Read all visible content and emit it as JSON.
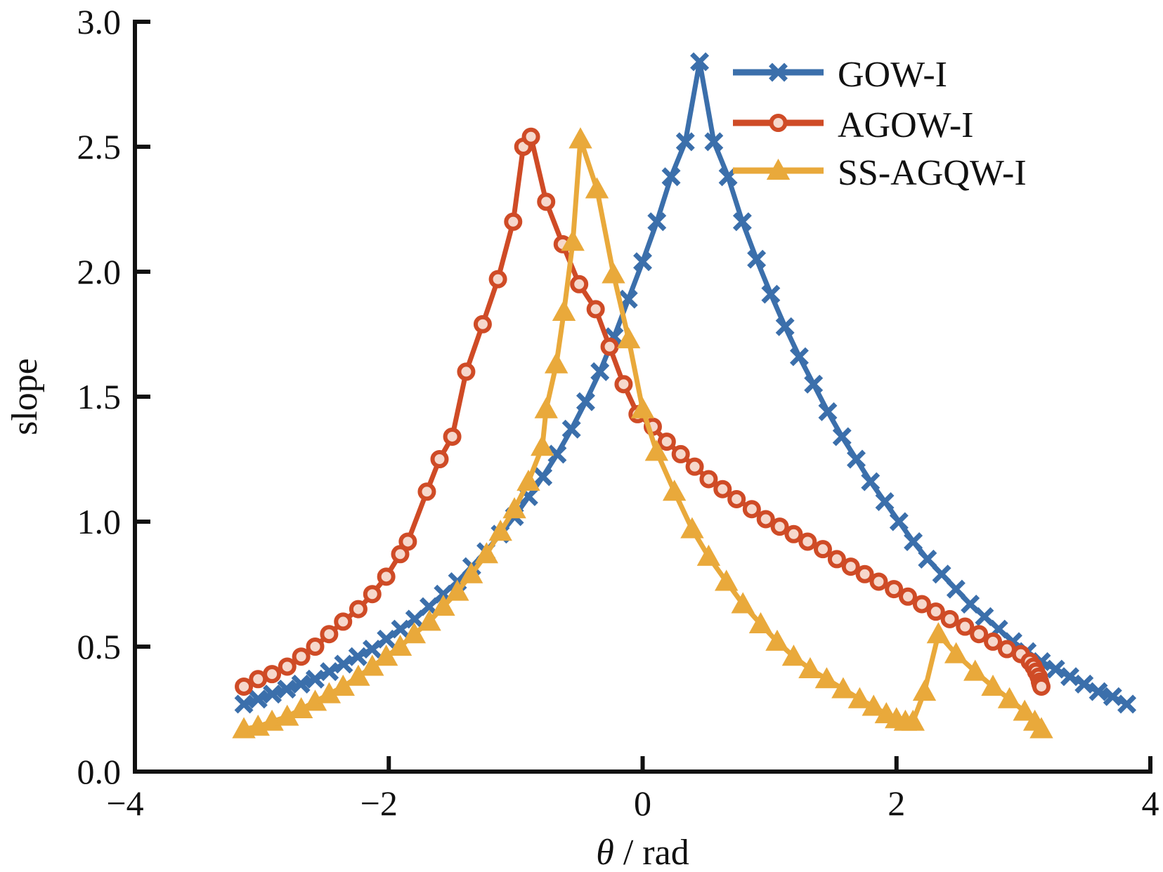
{
  "chart_data": {
    "type": "line",
    "title": "",
    "xlabel_symbol": "θ",
    "xlabel_unit": " / rad",
    "xlabel": "θ / rad",
    "ylabel": "slope",
    "xlim": [
      -4,
      4
    ],
    "ylim": [
      0,
      3.0
    ],
    "xticks": [
      -4,
      -2,
      0,
      2,
      4
    ],
    "xtick_labels": [
      "−4",
      "−2",
      "0",
      "2",
      "4"
    ],
    "yticks": [
      0,
      0.5,
      1.0,
      1.5,
      2.0,
      2.5,
      3.0
    ],
    "ytick_labels": [
      "0.0",
      "0.5",
      "1.0",
      "1.5",
      "2.0",
      "2.5",
      "3.0"
    ],
    "grid": false,
    "legend_position": "top-right",
    "x_start": -3.1416,
    "x_step": 0.1122,
    "series": [
      {
        "name": "GOW-I",
        "color": "#3b6fab",
        "marker": "x",
        "values": [
          0.27,
          0.29,
          0.31,
          0.33,
          0.35,
          0.37,
          0.4,
          0.43,
          0.46,
          0.49,
          0.53,
          0.57,
          0.61,
          0.66,
          0.71,
          0.76,
          0.82,
          0.88,
          0.95,
          1.02,
          1.1,
          1.18,
          1.27,
          1.37,
          1.48,
          1.6,
          1.74,
          1.89,
          2.04,
          2.2,
          2.38,
          2.52,
          2.84,
          2.52,
          2.38,
          2.2,
          2.05,
          1.91,
          1.78,
          1.66,
          1.55,
          1.44,
          1.34,
          1.25,
          1.16,
          1.08,
          1.0,
          0.92,
          0.85,
          0.79,
          0.73,
          0.67,
          0.62,
          0.57,
          0.52,
          0.48,
          0.44,
          0.41,
          0.38,
          0.35,
          0.32,
          0.3,
          0.27
        ]
      },
      {
        "name": "AGOW-I",
        "color": "#cf4b26",
        "marker": "o",
        "values": [
          0.34,
          0.37,
          0.39,
          0.42,
          0.46,
          0.5,
          0.55,
          0.6,
          0.65,
          0.71,
          0.78,
          0.87,
          0.92,
          1.12,
          1.25,
          1.34,
          1.6,
          1.79,
          1.97,
          2.2,
          2.5,
          2.54,
          2.28,
          2.11,
          1.95,
          1.85,
          1.7,
          1.55,
          1.43,
          1.38,
          1.32,
          1.27,
          1.22,
          1.17,
          1.13,
          1.09,
          1.05,
          1.01,
          0.98,
          0.95,
          0.92,
          0.89,
          0.85,
          0.82,
          0.79,
          0.76,
          0.73,
          0.7,
          0.67,
          0.64,
          0.61,
          0.58,
          0.55,
          0.52,
          0.49,
          0.47,
          0.44,
          0.42,
          0.4,
          0.38,
          0.36,
          0.35,
          0.34
        ],
        "x": [
          -3.1416,
          -3.03,
          -2.92,
          -2.8,
          -2.69,
          -2.58,
          -2.47,
          -2.36,
          -2.24,
          -2.13,
          -2.02,
          -1.91,
          -1.85,
          -1.7,
          -1.6,
          -1.5,
          -1.39,
          -1.26,
          -1.14,
          -1.02,
          -0.94,
          -0.88,
          -0.76,
          -0.63,
          -0.5,
          -0.37,
          -0.26,
          -0.15,
          -0.04,
          0.08,
          0.19,
          0.3,
          0.41,
          0.52,
          0.63,
          0.74,
          0.86,
          0.97,
          1.08,
          1.19,
          1.3,
          1.42,
          1.53,
          1.64,
          1.75,
          1.86,
          1.98,
          2.09,
          2.2,
          2.31,
          2.42,
          2.54,
          2.65,
          2.76,
          2.87,
          2.98,
          3.05,
          3.08,
          3.1,
          3.12,
          3.13,
          3.135,
          3.1416
        ]
      },
      {
        "name": "SS-AGQW-I",
        "color": "#e9a93b",
        "marker": "^",
        "values": [
          0.17,
          0.18,
          0.2,
          0.22,
          0.25,
          0.28,
          0.31,
          0.34,
          0.38,
          0.42,
          0.46,
          0.5,
          0.55,
          0.6,
          0.66,
          0.72,
          0.79,
          0.87,
          0.96,
          1.05,
          1.16,
          1.3,
          1.45,
          1.63,
          1.84,
          2.12,
          2.53,
          2.33,
          1.99,
          1.73,
          1.45,
          1.28,
          1.12,
          0.97,
          0.86,
          0.76,
          0.67,
          0.59,
          0.52,
          0.46,
          0.41,
          0.37,
          0.33,
          0.29,
          0.26,
          0.23,
          0.21,
          0.2,
          0.2,
          0.32,
          0.55,
          0.47,
          0.4,
          0.34,
          0.29,
          0.24,
          0.2,
          0.17
        ],
        "x": [
          -3.1416,
          -3.03,
          -2.92,
          -2.8,
          -2.69,
          -2.58,
          -2.47,
          -2.36,
          -2.24,
          -2.13,
          -2.02,
          -1.91,
          -1.8,
          -1.68,
          -1.57,
          -1.46,
          -1.35,
          -1.23,
          -1.12,
          -1.01,
          -0.9,
          -0.79,
          -0.76,
          -0.68,
          -0.62,
          -0.55,
          -0.49,
          -0.36,
          -0.23,
          -0.11,
          0.0,
          0.11,
          0.25,
          0.39,
          0.52,
          0.66,
          0.79,
          0.93,
          1.06,
          1.19,
          1.32,
          1.45,
          1.58,
          1.71,
          1.82,
          1.92,
          2.0,
          2.07,
          2.13,
          2.22,
          2.33,
          2.47,
          2.62,
          2.76,
          2.89,
          3.01,
          3.09,
          3.1416
        ]
      }
    ]
  }
}
